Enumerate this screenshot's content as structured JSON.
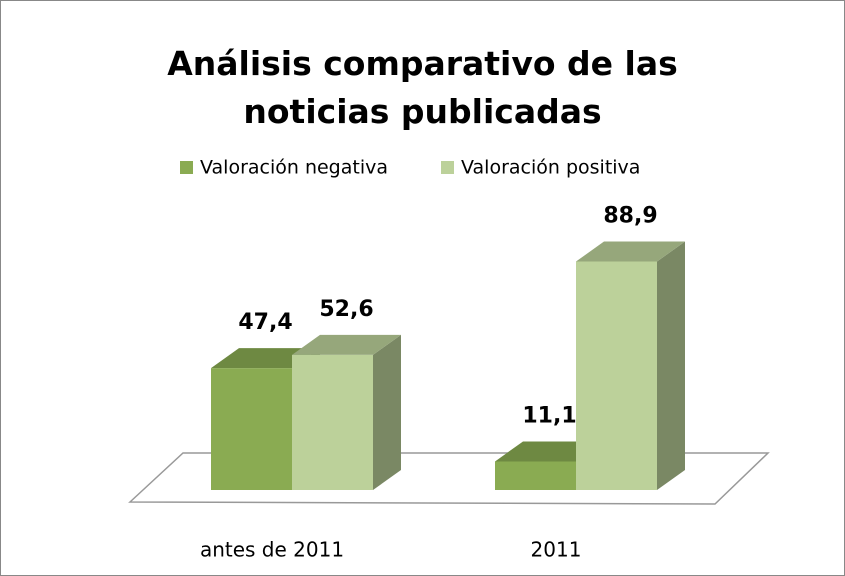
{
  "chart_data": {
    "type": "bar3d",
    "title": "Análisis comparativo de las noticias publicadas",
    "categories": [
      "antes de 2011",
      "2011"
    ],
    "series": [
      {
        "name": "Valoración negativa",
        "color": "#8aab52",
        "values": [
          47.4,
          11.1
        ],
        "value_labels": [
          "47,4",
          "11,1"
        ]
      },
      {
        "name": "Valoración positiva",
        "color": "#bcd19a",
        "values": [
          52.6,
          88.9
        ],
        "value_labels": [
          "52,6",
          "88,9"
        ]
      }
    ],
    "legend": "top"
  }
}
